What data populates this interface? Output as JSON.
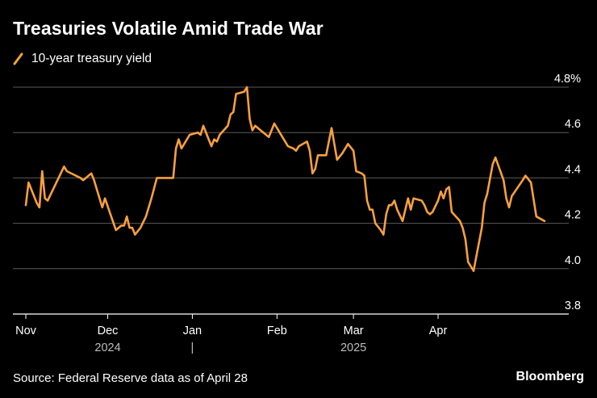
{
  "chart_data": {
    "type": "line",
    "title": "Treasuries Volatile Amid Trade War",
    "legend": {
      "placement": "top-left"
    },
    "series": [
      {
        "name": "10-year treasury yield",
        "color": "#f7a03e",
        "points": [
          [
            "2024-11-01",
            4.28
          ],
          [
            "2024-11-02",
            4.38
          ],
          [
            "2024-11-05",
            4.29
          ],
          [
            "2024-11-06",
            4.27
          ],
          [
            "2024-11-07",
            4.43
          ],
          [
            "2024-11-08",
            4.31
          ],
          [
            "2024-11-09",
            4.3
          ],
          [
            "2024-11-15",
            4.45
          ],
          [
            "2024-11-16",
            4.43
          ],
          [
            "2024-11-21",
            4.4
          ],
          [
            "2024-11-22",
            4.39
          ],
          [
            "2024-11-25",
            4.42
          ],
          [
            "2024-11-26",
            4.39
          ],
          [
            "2024-11-28",
            4.31
          ],
          [
            "2024-11-29",
            4.27
          ],
          [
            "2024-11-30",
            4.31
          ],
          [
            "2024-12-02",
            4.24
          ],
          [
            "2024-12-04",
            4.17
          ],
          [
            "2024-12-06",
            4.19
          ],
          [
            "2024-12-07",
            4.19
          ],
          [
            "2024-12-08",
            4.23
          ],
          [
            "2024-12-09",
            4.18
          ],
          [
            "2024-12-10",
            4.18
          ],
          [
            "2024-12-11",
            4.15
          ],
          [
            "2024-12-13",
            4.18
          ],
          [
            "2024-12-15",
            4.23
          ],
          [
            "2024-12-17",
            4.31
          ],
          [
            "2024-12-19",
            4.4
          ],
          [
            "2024-12-24",
            4.4
          ],
          [
            "2024-12-25",
            4.4
          ],
          [
            "2024-12-26",
            4.53
          ],
          [
            "2024-12-27",
            4.57
          ],
          [
            "2024-12-28",
            4.53
          ],
          [
            "2024-12-31",
            4.59
          ],
          [
            "2025-01-03",
            4.6
          ],
          [
            "2025-01-04",
            4.59
          ],
          [
            "2025-01-05",
            4.63
          ],
          [
            "2025-01-08",
            4.54
          ],
          [
            "2025-01-09",
            4.57
          ],
          [
            "2025-01-10",
            4.56
          ],
          [
            "2025-01-11",
            4.59
          ],
          [
            "2025-01-14",
            4.63
          ],
          [
            "2025-01-15",
            4.68
          ],
          [
            "2025-01-16",
            4.69
          ],
          [
            "2025-01-17",
            4.77
          ],
          [
            "2025-01-20",
            4.78
          ],
          [
            "2025-01-21",
            4.8
          ],
          [
            "2025-01-22",
            4.66
          ],
          [
            "2025-01-23",
            4.61
          ],
          [
            "2025-01-24",
            4.63
          ],
          [
            "2025-01-26",
            4.61
          ],
          [
            "2025-01-29",
            4.58
          ],
          [
            "2025-01-31",
            4.64
          ],
          [
            "2025-02-03",
            4.58
          ],
          [
            "2025-02-05",
            4.54
          ],
          [
            "2025-02-07",
            4.53
          ],
          [
            "2025-02-08",
            4.52
          ],
          [
            "2025-02-09",
            4.54
          ],
          [
            "2025-02-12",
            4.56
          ],
          [
            "2025-02-13",
            4.52
          ],
          [
            "2025-02-14",
            4.42
          ],
          [
            "2025-02-15",
            4.44
          ],
          [
            "2025-02-16",
            4.5
          ],
          [
            "2025-02-18",
            4.5
          ],
          [
            "2025-02-19",
            4.5
          ],
          [
            "2025-02-20",
            4.56
          ],
          [
            "2025-02-21",
            4.62
          ],
          [
            "2025-02-22",
            4.55
          ],
          [
            "2025-02-23",
            4.48
          ],
          [
            "2025-02-25",
            4.51
          ],
          [
            "2025-02-27",
            4.55
          ],
          [
            "2025-03-01",
            4.52
          ],
          [
            "2025-03-02",
            4.43
          ],
          [
            "2025-03-04",
            4.42
          ],
          [
            "2025-03-05",
            4.41
          ],
          [
            "2025-03-06",
            4.3
          ],
          [
            "2025-03-07",
            4.26
          ],
          [
            "2025-03-08",
            4.26
          ],
          [
            "2025-03-09",
            4.2
          ],
          [
            "2025-03-11",
            4.17
          ],
          [
            "2025-03-12",
            4.15
          ],
          [
            "2025-03-13",
            4.24
          ],
          [
            "2025-03-14",
            4.28
          ],
          [
            "2025-03-15",
            4.28
          ],
          [
            "2025-03-16",
            4.3
          ],
          [
            "2025-03-17",
            4.26
          ],
          [
            "2025-03-19",
            4.21
          ],
          [
            "2025-03-21",
            4.31
          ],
          [
            "2025-03-22",
            4.26
          ],
          [
            "2025-03-23",
            4.31
          ],
          [
            "2025-03-26",
            4.3
          ],
          [
            "2025-03-27",
            4.28
          ],
          [
            "2025-03-28",
            4.25
          ],
          [
            "2025-03-29",
            4.24
          ],
          [
            "2025-03-30",
            4.25
          ],
          [
            "2025-04-01",
            4.3
          ],
          [
            "2025-04-02",
            4.34
          ],
          [
            "2025-04-03",
            4.31
          ],
          [
            "2025-04-04",
            4.35
          ],
          [
            "2025-04-05",
            4.36
          ],
          [
            "2025-04-06",
            4.25
          ],
          [
            "2025-04-09",
            4.21
          ],
          [
            "2025-04-10",
            4.18
          ],
          [
            "2025-04-11",
            4.13
          ],
          [
            "2025-04-12",
            4.03
          ],
          [
            "2025-04-13",
            4.01
          ],
          [
            "2025-04-14",
            3.99
          ],
          [
            "2025-04-17",
            4.18
          ],
          [
            "2025-04-18",
            4.29
          ],
          [
            "2025-04-19",
            4.33
          ],
          [
            "2025-04-21",
            4.46
          ],
          [
            "2025-04-22",
            4.49
          ],
          [
            "2025-04-25",
            4.39
          ],
          [
            "2025-04-26",
            4.31
          ],
          [
            "2025-04-27",
            4.27
          ],
          [
            "2025-04-28",
            4.32
          ],
          [
            "2025-05-02",
            4.39
          ],
          [
            "2025-05-03",
            4.41
          ],
          [
            "2025-05-05",
            4.38
          ],
          [
            "2025-05-07",
            4.23
          ],
          [
            "2025-05-10",
            4.21
          ]
        ]
      }
    ],
    "y_axis": {
      "range": [
        3.8,
        4.8
      ],
      "ticks": [
        {
          "value": 4.8,
          "label": "4.8%"
        },
        {
          "value": 4.6,
          "label": "4.6"
        },
        {
          "value": 4.4,
          "label": "4.4"
        },
        {
          "value": 4.2,
          "label": "4.2"
        },
        {
          "value": 4.0,
          "label": "4.0"
        },
        {
          "value": 3.8,
          "label": "3.8"
        }
      ],
      "position": "right",
      "gridlines": true
    },
    "x_axis": {
      "range": [
        "2024-11-01",
        "2025-05-10"
      ],
      "ticks": [
        {
          "date": "2024-11-01",
          "label": "Nov"
        },
        {
          "date": "2024-12-01",
          "label": "Dec"
        },
        {
          "date": "2025-01-01",
          "label": "Jan"
        },
        {
          "date": "2025-02-01",
          "label": "Feb"
        },
        {
          "date": "2025-03-01",
          "label": "Mar"
        },
        {
          "date": "2025-04-01",
          "label": "Apr"
        }
      ],
      "years": [
        {
          "date": "2024-12-01",
          "label": "2024"
        },
        {
          "date": "2025-03-01",
          "label": "2025"
        }
      ],
      "year_separator": {
        "date": "2025-01-01",
        "label": "|"
      }
    }
  },
  "footer": {
    "source": "Source: Federal Reserve data as of April 28",
    "brand": "Bloomberg"
  },
  "colors": {
    "background": "#000000",
    "line": "#f7a03e",
    "grid": "#5a5a5a",
    "text": "#ffffff"
  }
}
